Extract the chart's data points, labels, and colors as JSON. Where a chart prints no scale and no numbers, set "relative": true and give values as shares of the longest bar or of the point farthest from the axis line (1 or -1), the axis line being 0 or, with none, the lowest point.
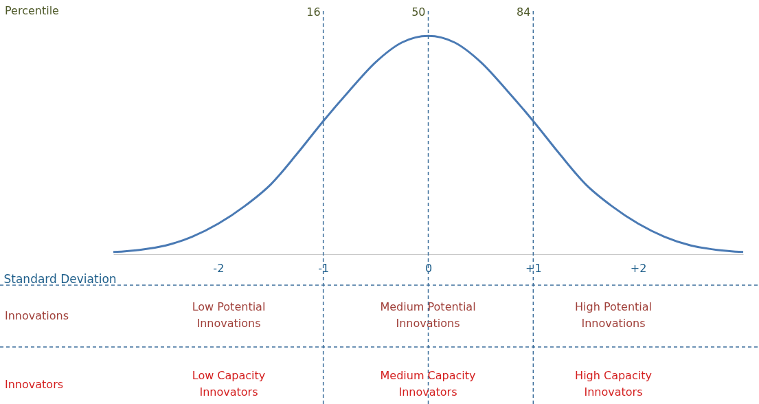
{
  "chart_data": {
    "type": "line",
    "relative": true,
    "xlabel": "Standard Deviation",
    "x": [
      -3,
      -2.75,
      -2.5,
      -2.25,
      -2,
      -1.75,
      -1.5,
      -1.25,
      -1,
      -0.75,
      -0.5,
      -0.25,
      0,
      0.25,
      0.5,
      0.75,
      1,
      1.25,
      1.5,
      1.75,
      2,
      2.25,
      2.5,
      2.75,
      3
    ],
    "series": [
      {
        "color": "#4a7ab4",
        "values": [
          0.01,
          0.02,
          0.04,
          0.08,
          0.14,
          0.22,
          0.32,
          0.46,
          0.61,
          0.75,
          0.88,
          0.97,
          1,
          0.97,
          0.88,
          0.75,
          0.61,
          0.46,
          0.32,
          0.22,
          0.14,
          0.08,
          0.04,
          0.02,
          0.01
        ]
      }
    ],
    "xlim": [
      -3,
      3
    ],
    "xticks": [
      -2,
      -1,
      0,
      {
        "value": 1,
        "label": "+1"
      },
      {
        "value": 2,
        "label": "+2"
      }
    ],
    "grid": false,
    "marker": "none",
    "line_style": "solid",
    "ref_lines": [
      {
        "axis": "x",
        "value": -1,
        "color": "#3d6f9c",
        "line_style": "dashed"
      },
      {
        "axis": "x",
        "value": 0,
        "color": "#3d6f9c",
        "line_style": "dashed"
      },
      {
        "axis": "x",
        "value": 1,
        "color": "#3d6f9c",
        "line_style": "dashed"
      }
    ],
    "annotations": [
      "Percentile",
      {
        "text": "16",
        "x": -1
      },
      {
        "text": "50",
        "x": 0
      },
      {
        "text": "84",
        "x": 1
      },
      "Innovations",
      "Low Potential\nInnovations",
      "Medium Potential\nInnovations",
      "High Potential\nInnovations",
      "Innovators",
      "Low Capacity\nInnovators",
      "Medium Capacity\nInnovators",
      "High Capacity\nInnovators"
    ]
  }
}
